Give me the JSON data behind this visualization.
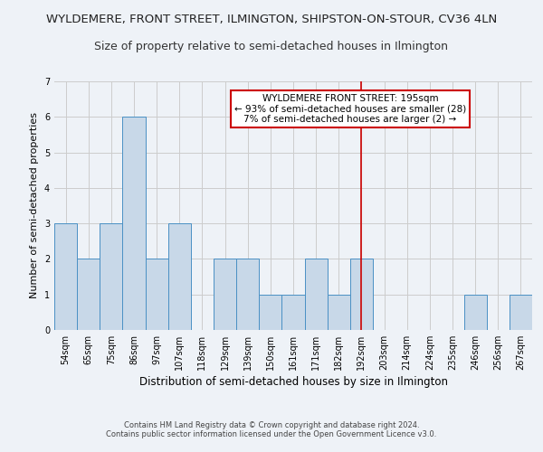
{
  "title": "WYLDEMERE, FRONT STREET, ILMINGTON, SHIPSTON-ON-STOUR, CV36 4LN",
  "subtitle": "Size of property relative to semi-detached houses in Ilmington",
  "xlabel": "Distribution of semi-detached houses by size in Ilmington",
  "ylabel": "Number of semi-detached properties",
  "footer_line1": "Contains HM Land Registry data © Crown copyright and database right 2024.",
  "footer_line2": "Contains public sector information licensed under the Open Government Licence v3.0.",
  "categories": [
    "54sqm",
    "65sqm",
    "75sqm",
    "86sqm",
    "97sqm",
    "107sqm",
    "118sqm",
    "129sqm",
    "139sqm",
    "150sqm",
    "161sqm",
    "171sqm",
    "182sqm",
    "192sqm",
    "203sqm",
    "214sqm",
    "224sqm",
    "235sqm",
    "246sqm",
    "256sqm",
    "267sqm"
  ],
  "values": [
    3,
    2,
    3,
    6,
    2,
    3,
    0,
    2,
    2,
    1,
    1,
    2,
    1,
    2,
    0,
    0,
    0,
    0,
    1,
    0,
    1
  ],
  "bar_color": "#c8d8e8",
  "bar_edge_color": "#4a90c4",
  "property_line_index": 13,
  "property_label": "WYLDEMERE FRONT STREET: 195sqm",
  "smaller_pct": "93% of semi-detached houses are smaller (28)",
  "larger_pct": "7% of semi-detached houses are larger (2)",
  "line_color": "#cc0000",
  "box_edge_color": "#cc0000",
  "ylim": [
    0,
    7
  ],
  "yticks": [
    0,
    1,
    2,
    3,
    4,
    5,
    6,
    7
  ],
  "grid_color": "#cccccc",
  "background_color": "#eef2f7",
  "title_fontsize": 9.5,
  "subtitle_fontsize": 9,
  "ylabel_fontsize": 8,
  "xlabel_fontsize": 8.5,
  "tick_fontsize": 7,
  "annotation_fontsize": 7.5,
  "footer_fontsize": 6
}
